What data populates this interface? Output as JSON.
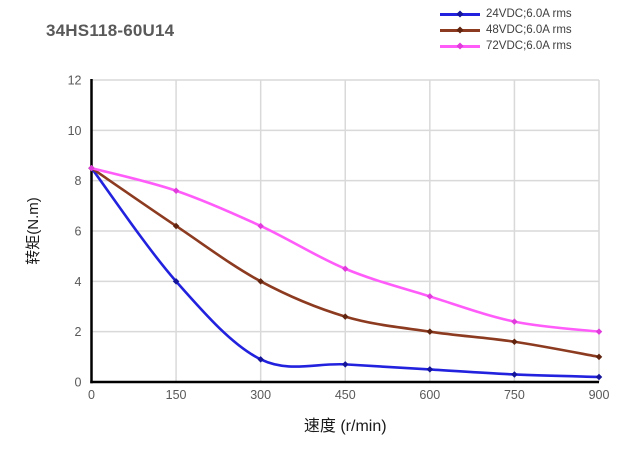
{
  "chart_data": {
    "type": "line",
    "title": "34HS118-60U14",
    "xlabel": "速度 (r/min)",
    "ylabel": "转矩(N.m)",
    "x": [
      0,
      150,
      300,
      450,
      600,
      750,
      900
    ],
    "xlim": [
      0,
      900
    ],
    "ylim": [
      0,
      12
    ],
    "xticks": [
      0,
      150,
      300,
      450,
      600,
      750,
      900
    ],
    "yticks": [
      0,
      2,
      4,
      6,
      8,
      10,
      12
    ],
    "grid": true,
    "smooth": true,
    "legend_position": "top-right",
    "series": [
      {
        "name": "24VDC;6.0A rms",
        "color": "#2222de",
        "marker_color": "#15159a",
        "values": [
          8.5,
          4.0,
          0.9,
          0.7,
          0.5,
          0.3,
          0.2
        ]
      },
      {
        "name": "48VDC;6.0A rms",
        "color": "#8c3b20",
        "marker_color": "#61240e",
        "values": [
          8.5,
          6.2,
          4.0,
          2.6,
          2.0,
          1.6,
          1.0
        ]
      },
      {
        "name": "72VDC;6.0A rms",
        "color": "#ff5cfa",
        "marker_color": "#e03cdc",
        "values": [
          8.5,
          7.6,
          6.2,
          4.5,
          3.4,
          2.4,
          2.0
        ]
      }
    ],
    "colors": {
      "background": "#ffffff",
      "grid": "#d9d9d9",
      "axis": "#000000",
      "tick_label": "#595959",
      "title": "#595959",
      "axis_label": "#1a1a1a",
      "legend_text": "#3f3f3f"
    }
  }
}
